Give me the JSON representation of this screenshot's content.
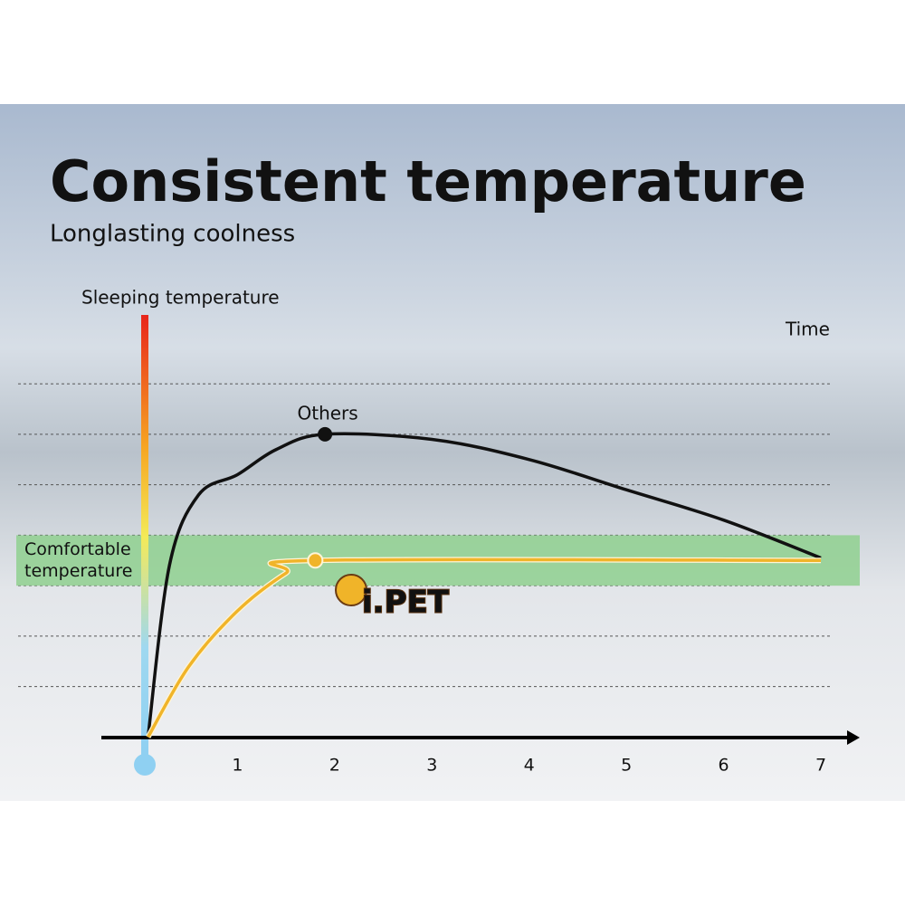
{
  "chart_data": {
    "type": "line",
    "title": "Consistent temperature",
    "subtitle": "Longlasting coolness",
    "y_label": "Sleeping temperature",
    "x_label": "Time",
    "xlim": [
      -0.4,
      7.4
    ],
    "xticks": [
      1,
      2,
      3,
      4,
      5,
      6,
      7
    ],
    "ylim": [
      -0.1,
      7.2
    ],
    "grid": true,
    "band": {
      "label": [
        "Comfortable",
        "temperature"
      ],
      "range": [
        3,
        4
      ],
      "color": "#8fd08f"
    },
    "series": [
      {
        "name": "Others",
        "color": "#111111",
        "x": [
          0.08,
          0.3,
          0.6,
          1,
          1.4,
          1.9,
          3,
          4,
          5,
          6,
          7
        ],
        "values": [
          0,
          3.4,
          4.8,
          5.2,
          5.7,
          6.0,
          5.9,
          5.5,
          4.9,
          4.3,
          3.55
        ]
      },
      {
        "name": "i.PET",
        "color": "#f0b429",
        "x": [
          0.08,
          0.5,
          1,
          1.5,
          1.8,
          7
        ],
        "values": [
          0,
          1.4,
          2.5,
          3.25,
          3.5,
          3.5
        ]
      }
    ]
  }
}
